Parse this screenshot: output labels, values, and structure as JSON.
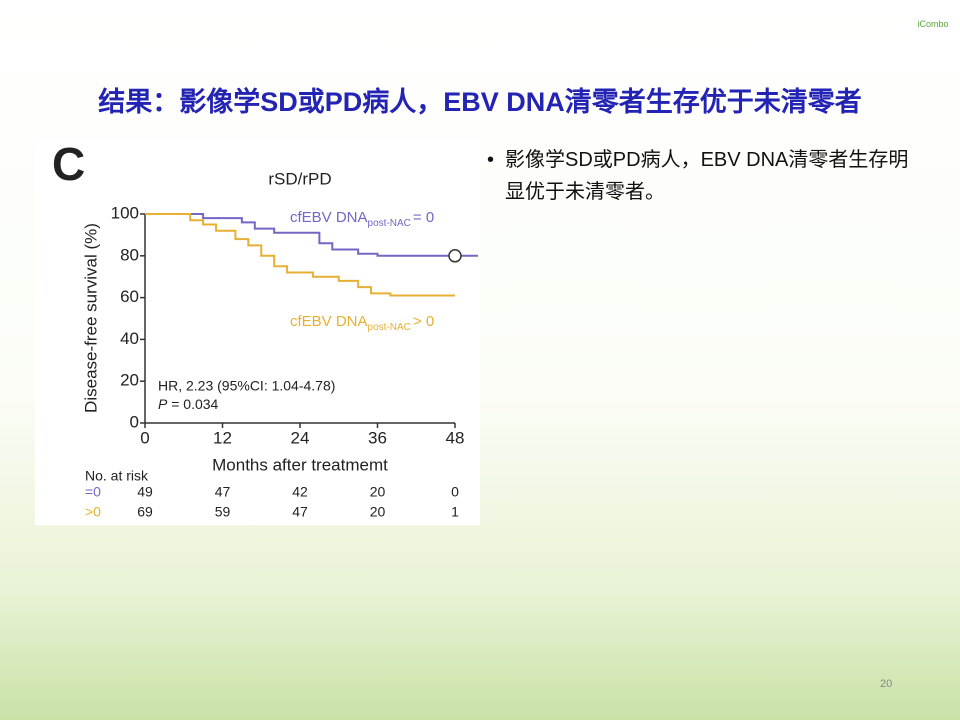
{
  "slide": {
    "title": "结果：影像学SD或PD病人，EBV DNA清零者生存优于未清零者",
    "bullet": "影像学SD或PD病人，EBV DNA清零者生存明显优于未清零者。",
    "logo": "iCombo",
    "page_number": "20"
  },
  "chart_data": {
    "type": "line",
    "panel": "C",
    "title": "rSD/rPD",
    "x_label": "Months after treatmemt",
    "y_label": "Disease-free survival (%)",
    "xlim": [
      0,
      48
    ],
    "xticks": [
      0,
      12,
      24,
      36,
      48
    ],
    "ylim": [
      0,
      100
    ],
    "yticks": [
      0,
      20,
      40,
      60,
      80,
      100
    ],
    "series": [
      {
        "name": "cfEBV DNA",
        "name_sub": "post-NAC",
        "name_suffix": "= 0",
        "color": "#7466c4",
        "x": [
          0,
          9,
          15,
          17,
          20,
          27,
          29,
          33,
          36,
          48
        ],
        "values": [
          100,
          98,
          96,
          93,
          91,
          86,
          83,
          81,
          80,
          80
        ]
      },
      {
        "name": "cfEBV DNA",
        "name_sub": "post-NAC",
        "name_suffix": "> 0",
        "color": "#e6b032",
        "x": [
          0,
          7,
          9,
          11,
          14,
          16,
          18,
          20,
          22,
          26,
          30,
          33,
          35,
          38,
          48
        ],
        "values": [
          100,
          97,
          95,
          92,
          88,
          85,
          80,
          75,
          72,
          70,
          68,
          65,
          62,
          61,
          61
        ]
      }
    ],
    "annotations": {
      "hr": "HR, 2.23 (95%CI: 1.04-4.78)",
      "p_symbol": "P",
      "p_value": "= 0.034"
    },
    "risk_table": {
      "header": "No. at risk",
      "rows": [
        {
          "label": "=0",
          "values": [
            "49",
            "47",
            "42",
            "20",
            "0"
          ]
        },
        {
          "label": ">0",
          "values": [
            "69",
            "59",
            "47",
            "20",
            "1"
          ]
        }
      ]
    }
  }
}
